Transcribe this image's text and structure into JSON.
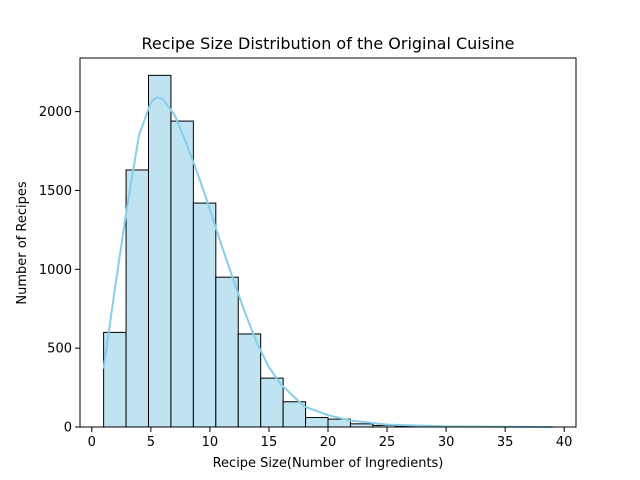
{
  "chart_data": {
    "type": "bar",
    "subtype": "histogram",
    "title": "Recipe Size Distribution of the Original Cuisine",
    "xlabel": "Recipe Size(Number of Ingredients)",
    "ylabel": "Number of Recipes",
    "xlim": [
      -1,
      41
    ],
    "ylim": [
      0,
      2340
    ],
    "xticks": [
      0,
      5,
      10,
      15,
      20,
      25,
      30,
      35,
      40
    ],
    "yticks": [
      0,
      500,
      1000,
      1500,
      2000
    ],
    "bin_edges": [
      1,
      2.9,
      4.8,
      6.7,
      8.6,
      10.5,
      12.4,
      14.3,
      16.2,
      18.1,
      20.0,
      21.9,
      23.8,
      25.7,
      27.6,
      29.5,
      31.4,
      33.3,
      35.2,
      37.1,
      39.0
    ],
    "counts": [
      600,
      1630,
      2230,
      1940,
      1420,
      950,
      590,
      310,
      160,
      60,
      50,
      20,
      10,
      5,
      3,
      2,
      1,
      1,
      1,
      1
    ],
    "kde": {
      "x": [
        1,
        2,
        3,
        4,
        5,
        5.5,
        6,
        7,
        8,
        9,
        10,
        11,
        12,
        13,
        14,
        15,
        16,
        18,
        20,
        22,
        25,
        30,
        35,
        39
      ],
      "y": [
        370,
        900,
        1400,
        1850,
        2060,
        2090,
        2080,
        1980,
        1800,
        1600,
        1380,
        1150,
        930,
        720,
        530,
        380,
        270,
        130,
        75,
        40,
        15,
        4,
        1,
        0
      ]
    },
    "grid": false,
    "legend": "none",
    "colors": {
      "bar_fill": "#c0e3f2",
      "bar_edge": "#000000",
      "kde_line": "#87ceeb"
    }
  }
}
